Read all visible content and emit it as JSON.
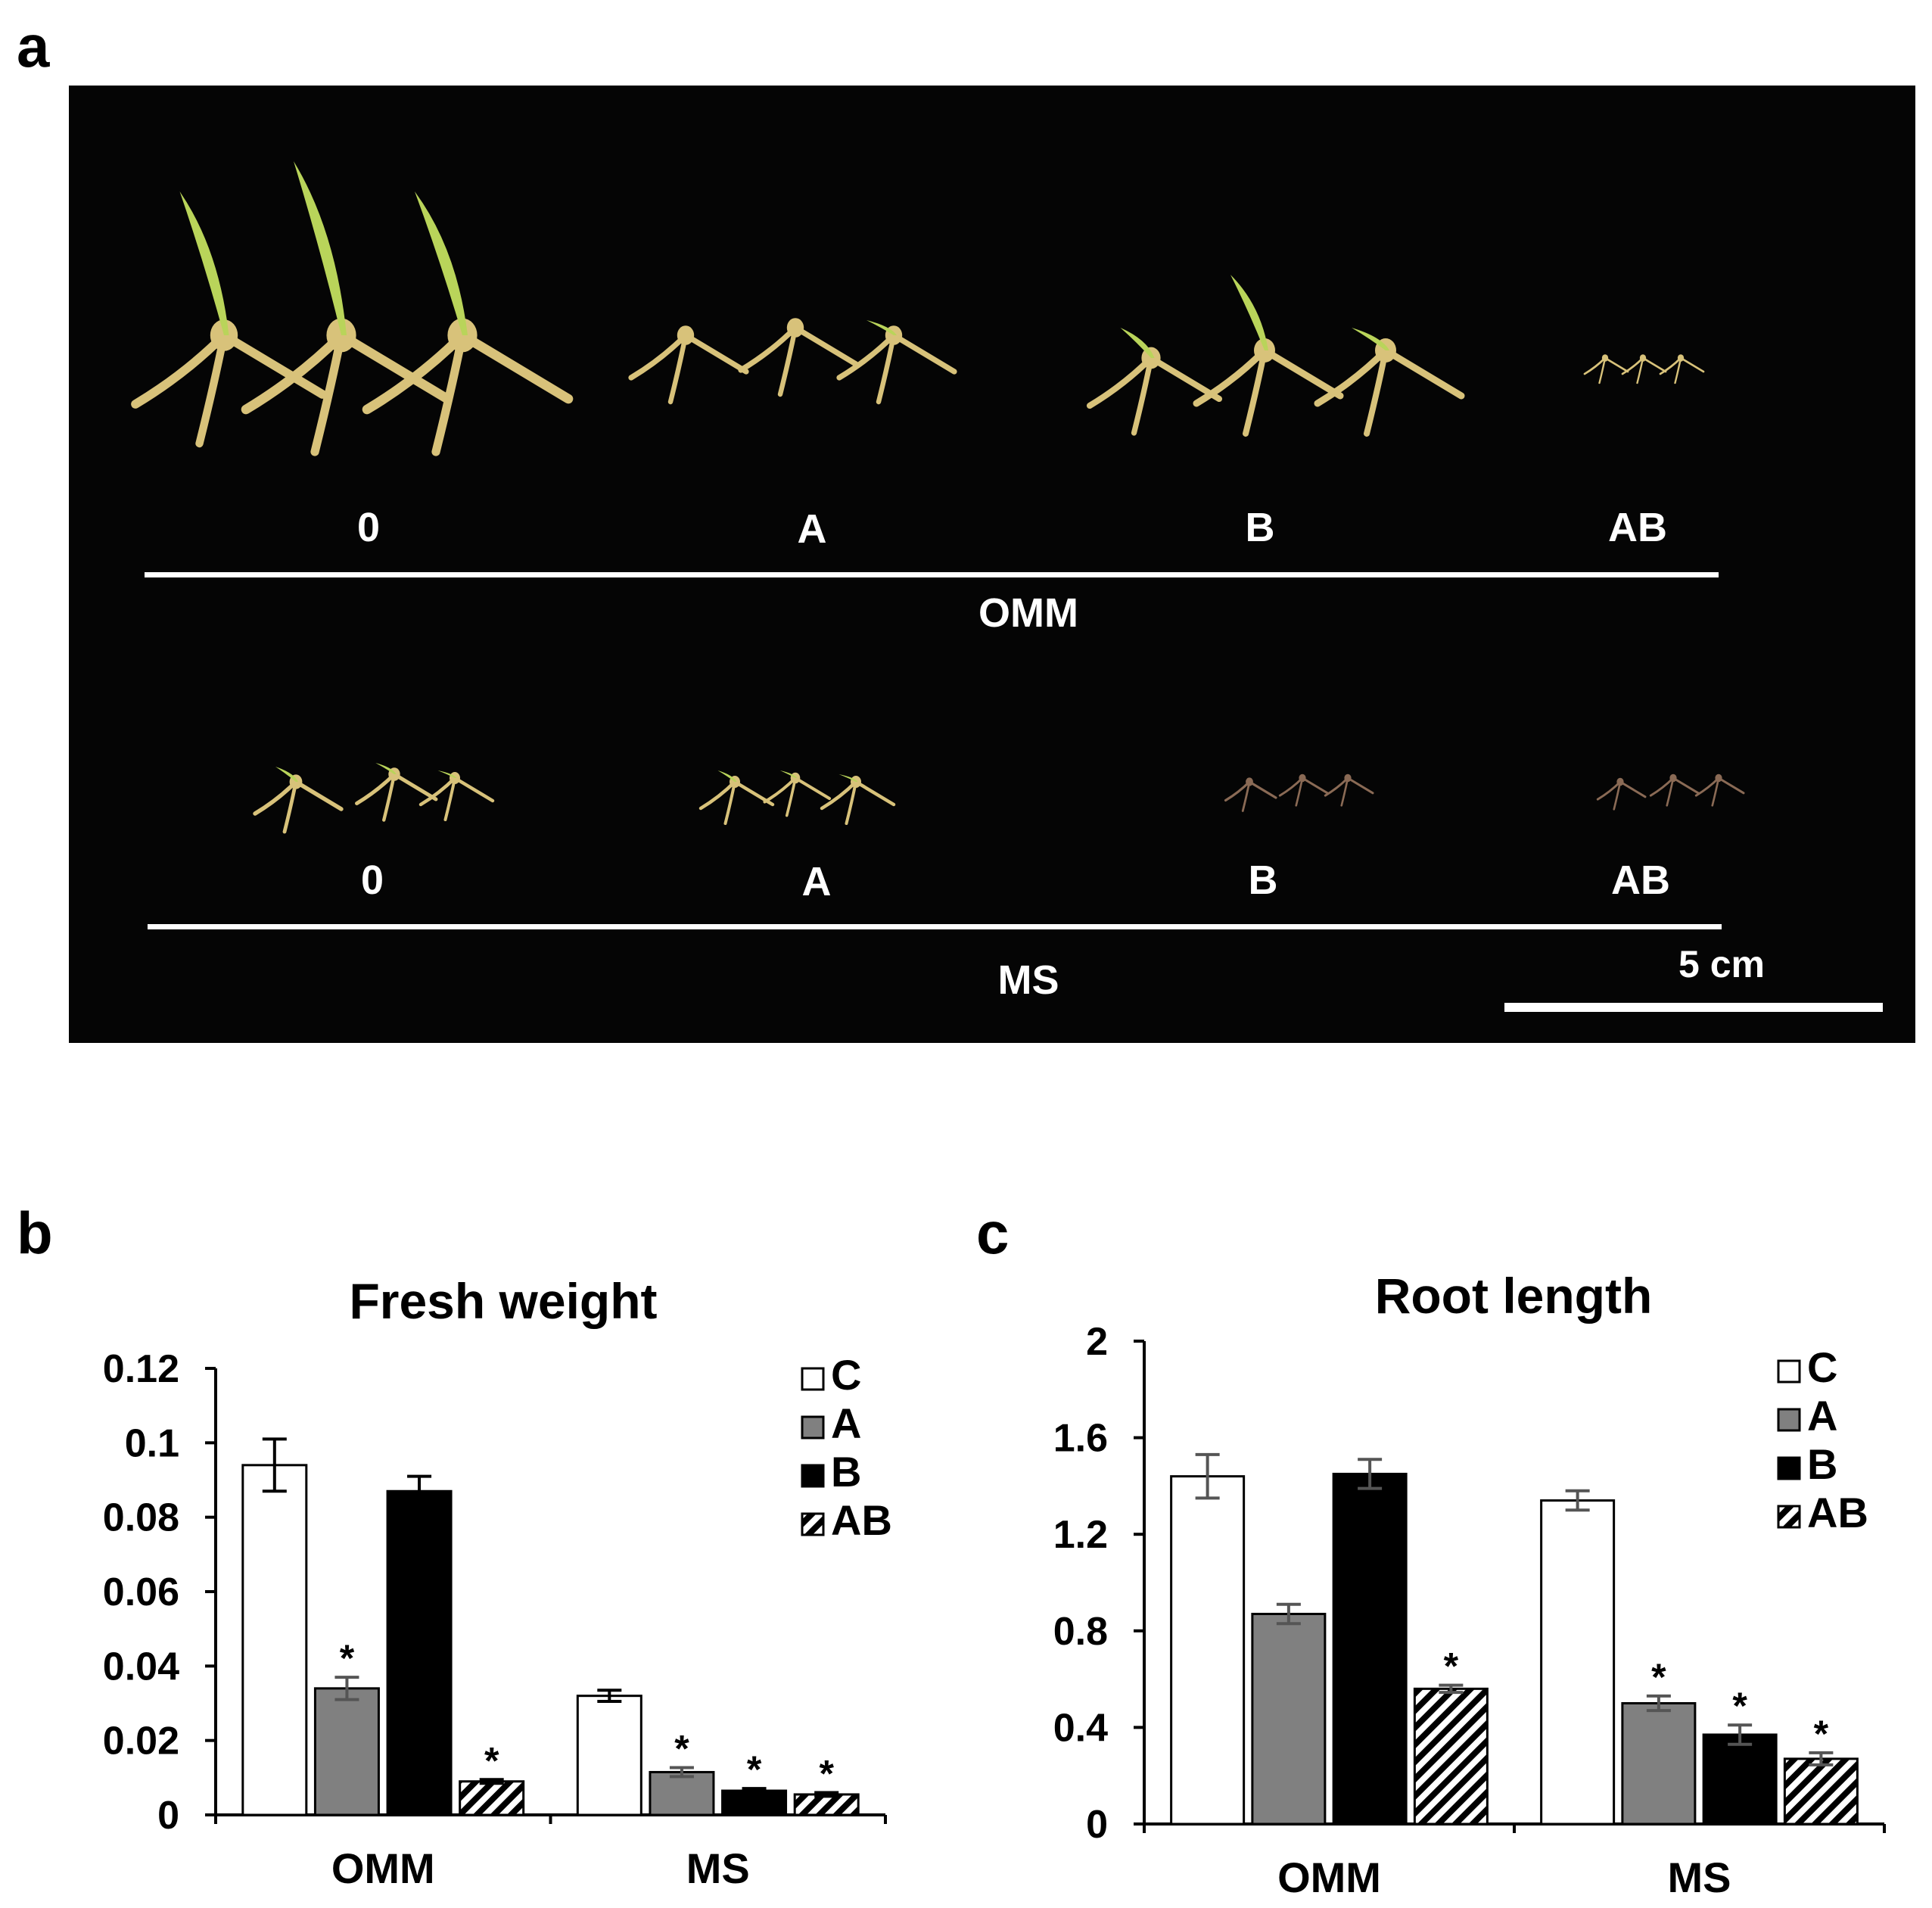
{
  "panels": {
    "a": {
      "letter": "a"
    },
    "b": {
      "letter": "b"
    },
    "c": {
      "letter": "c"
    }
  },
  "photo": {
    "top_row": {
      "groups": [
        "0",
        "A",
        "B",
        "AB"
      ],
      "medium": "OMM"
    },
    "bottom_row": {
      "groups": [
        "0",
        "A",
        "B",
        "AB"
      ],
      "medium": "MS"
    },
    "scale_bar_label": "5 cm",
    "colors": {
      "background": "#050505",
      "seedling": "#d8c27a",
      "leaf": "#b9d45a",
      "brown_seedling": "#8a6a55",
      "label": "#ffffff"
    }
  },
  "chart_data": [
    {
      "type": "bar",
      "title": "Fresh weight",
      "xlabel": "",
      "ylabel": "",
      "categories": [
        "OMM",
        "MS"
      ],
      "ylim": [
        0,
        0.12
      ],
      "yticks": [
        "0",
        "0.02",
        "0.04",
        "0.06",
        "0.08",
        "0.1",
        "0.12"
      ],
      "yticks_values": [
        0,
        0.02,
        0.04,
        0.06,
        0.08,
        0.1,
        0.12
      ],
      "legend_position": "top-right",
      "series": [
        {
          "name": "C",
          "fill": "white",
          "values": [
            0.094,
            0.032
          ],
          "errors": [
            0.007,
            0.0015
          ],
          "significant": [
            false,
            false
          ]
        },
        {
          "name": "A",
          "fill": "gray",
          "values": [
            0.034,
            0.0115
          ],
          "errors": [
            0.003,
            0.0012
          ],
          "significant": [
            true,
            true
          ]
        },
        {
          "name": "B",
          "fill": "black",
          "values": [
            0.087,
            0.0065
          ],
          "errors": [
            0.004,
            0.0006
          ],
          "significant": [
            false,
            true
          ]
        },
        {
          "name": "AB",
          "fill": "hatch",
          "values": [
            0.009,
            0.0055
          ],
          "errors": [
            0.0005,
            0.0005
          ],
          "significant": [
            true,
            true
          ]
        }
      ],
      "significance_marker": "*"
    },
    {
      "type": "bar",
      "title": "Root length",
      "xlabel": "",
      "ylabel": "",
      "categories": [
        "OMM",
        "MS"
      ],
      "ylim": [
        0,
        2
      ],
      "yticks": [
        "0",
        "0.4",
        "0.8",
        "1.2",
        "1.6",
        "2"
      ],
      "yticks_values": [
        0,
        0.4,
        0.8,
        1.2,
        1.6,
        2
      ],
      "legend_position": "top-right",
      "series": [
        {
          "name": "C",
          "fill": "white",
          "values": [
            1.44,
            1.34
          ],
          "errors": [
            0.09,
            0.04
          ],
          "significant": [
            false,
            false
          ]
        },
        {
          "name": "A",
          "fill": "gray",
          "values": [
            0.87,
            0.5
          ],
          "errors": [
            0.04,
            0.03
          ],
          "significant": [
            false,
            true
          ]
        },
        {
          "name": "B",
          "fill": "black",
          "values": [
            1.45,
            0.37
          ],
          "errors": [
            0.06,
            0.04
          ],
          "significant": [
            false,
            true
          ]
        },
        {
          "name": "AB",
          "fill": "hatch",
          "values": [
            0.56,
            0.27
          ],
          "errors": [
            0.015,
            0.025
          ],
          "significant": [
            true,
            true
          ]
        }
      ],
      "significance_marker": "*"
    }
  ],
  "style": {
    "gray_fill": "#808080",
    "error_color_gray": "#555555"
  }
}
